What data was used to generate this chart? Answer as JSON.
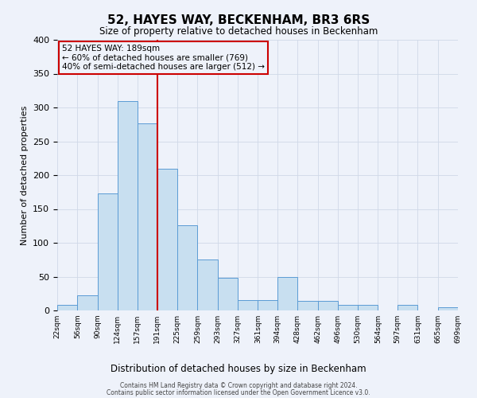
{
  "title": "52, HAYES WAY, BECKENHAM, BR3 6RS",
  "subtitle": "Size of property relative to detached houses in Beckenham",
  "xlabel": "Distribution of detached houses by size in Beckenham",
  "ylabel": "Number of detached properties",
  "bin_edges": [
    22,
    56,
    90,
    124,
    157,
    191,
    225,
    259,
    293,
    327,
    361,
    394,
    428,
    462,
    496,
    530,
    564,
    597,
    631,
    665,
    699
  ],
  "bin_labels": [
    "22sqm",
    "56sqm",
    "90sqm",
    "124sqm",
    "157sqm",
    "191sqm",
    "225sqm",
    "259sqm",
    "293sqm",
    "327sqm",
    "361sqm",
    "394sqm",
    "428sqm",
    "462sqm",
    "496sqm",
    "530sqm",
    "564sqm",
    "597sqm",
    "631sqm",
    "665sqm",
    "699sqm"
  ],
  "counts": [
    8,
    22,
    173,
    310,
    277,
    210,
    126,
    75,
    48,
    15,
    15,
    49,
    14,
    14,
    8,
    8,
    0,
    8,
    0,
    5
  ],
  "bar_color": "#c8dff0",
  "bar_edge_color": "#5b9bd5",
  "vline_x": 191,
  "vline_color": "#cc0000",
  "annotation_text": "52 HAYES WAY: 189sqm\n← 60% of detached houses are smaller (769)\n40% of semi-detached houses are larger (512) →",
  "annotation_box_color": "#cc0000",
  "ylim": [
    0,
    400
  ],
  "yticks": [
    0,
    50,
    100,
    150,
    200,
    250,
    300,
    350,
    400
  ],
  "grid_color": "#d0d8e8",
  "background_color": "#eef2fa",
  "footer_line1": "Contains HM Land Registry data © Crown copyright and database right 2024.",
  "footer_line2": "Contains public sector information licensed under the Open Government Licence v3.0."
}
